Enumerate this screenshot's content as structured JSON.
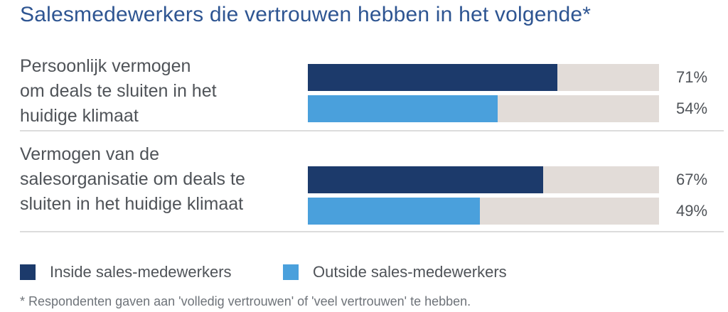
{
  "title": "Salesmedewerkers die vertrouwen hebben in het volgende*",
  "footnote": "* Respondenten gaven aan 'volledig vertrouwen' of 'veel vertrouwen' te hebben.",
  "colors": {
    "inside": "#1c3a6b",
    "outside": "#4aa0dc",
    "track": "#e2dcd8",
    "title": "#2e5592"
  },
  "chart_data": {
    "type": "bar",
    "orientation": "horizontal",
    "title": "Salesmedewerkers die vertrouwen hebben in het volgende*",
    "categories": [
      "Persoonlijk vermogen\nom deals te sluiten in het\nhuidige klimaat",
      "Vermogen van de\nsalesorganisatie om deals te\nsluiten in het huidige klimaat"
    ],
    "series": [
      {
        "name": "Inside sales-medewerkers",
        "values": [
          71,
          67
        ],
        "labels": [
          "71%",
          "67%"
        ]
      },
      {
        "name": "Outside sales-medewerkers",
        "values": [
          54,
          49
        ],
        "labels": [
          "54%",
          "49%"
        ]
      }
    ],
    "xlim": [
      0,
      100
    ],
    "grid": false,
    "legend_position": "bottom-left",
    "unit": "%"
  }
}
